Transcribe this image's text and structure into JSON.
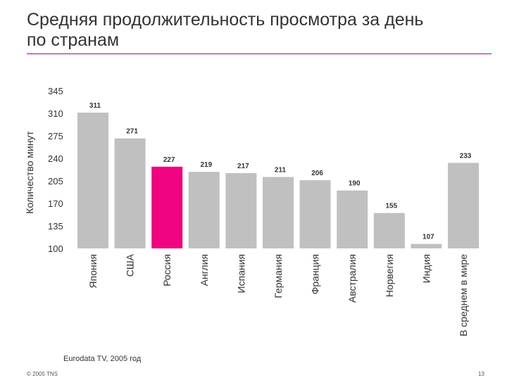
{
  "slide": {
    "title_line1": "Средняя продолжительность просмотра за день",
    "title_line2": "по странам",
    "source": "Eurodata TV, 2005 год",
    "copyright": "© 2005 TNS",
    "page_number": "13",
    "rule_color": "#c2007a"
  },
  "chart_data": {
    "type": "bar",
    "title": "",
    "xlabel": "",
    "ylabel": "Количество минут",
    "ylim": [
      100,
      345
    ],
    "yticks": [
      100,
      135,
      170,
      205,
      240,
      275,
      310,
      345
    ],
    "grid": false,
    "legend": "none",
    "categories": [
      "Япония",
      "США",
      "Россия",
      "Англия",
      "Испания",
      "Германия",
      "Франция",
      "Австралия",
      "Норвегия",
      "Индия",
      "В среднем в мире"
    ],
    "values": [
      311,
      271,
      227,
      219,
      217,
      211,
      206,
      190,
      155,
      107,
      233
    ],
    "highlight_index": 2,
    "bar_color": "#c0c0c0",
    "highlight_color": "#f0047f"
  }
}
